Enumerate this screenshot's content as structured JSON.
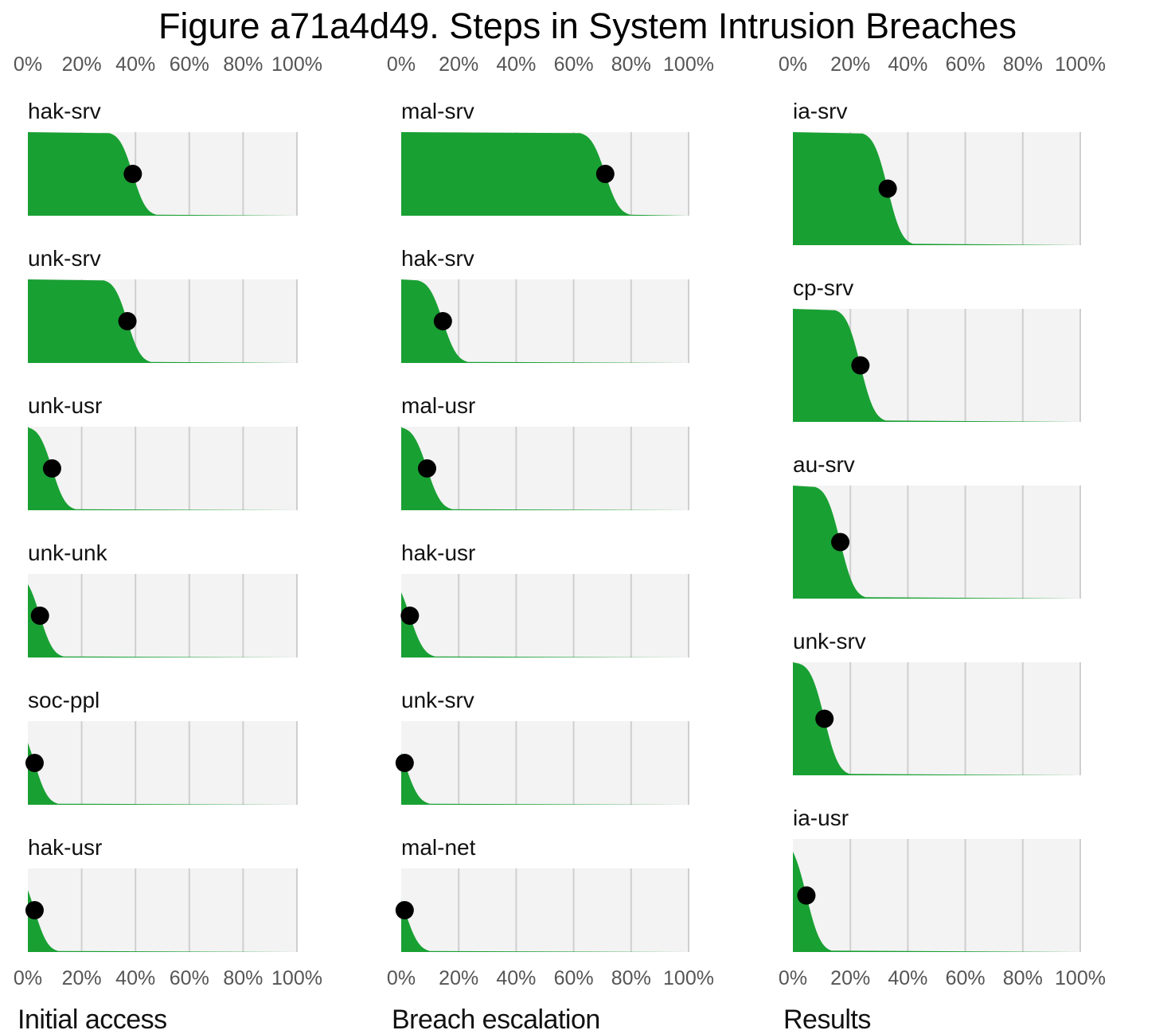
{
  "chart_data": {
    "type": "area",
    "title": "Figure a71a4d49. Steps in System Intrusion Breaches",
    "x_ticks": [
      "0%",
      "20%",
      "40%",
      "60%",
      "80%",
      "100%"
    ],
    "xlim": [
      0,
      1
    ],
    "grid": true,
    "fill_color": "#19a033",
    "point_color": "#000000",
    "panel_bg": "#f3f3f3",
    "columns": [
      {
        "name": "Initial access",
        "rows": [
          {
            "label": "hak-srv",
            "value": 0.39
          },
          {
            "label": "unk-srv",
            "value": 0.37
          },
          {
            "label": "unk-usr",
            "value": 0.09
          },
          {
            "label": "unk-unk",
            "value": 0.045
          },
          {
            "label": "soc-ppl",
            "value": 0.025
          },
          {
            "label": "hak-usr",
            "value": 0.025
          }
        ]
      },
      {
        "name": "Breach escalation",
        "rows": [
          {
            "label": "mal-srv",
            "value": 0.71
          },
          {
            "label": "hak-srv",
            "value": 0.145
          },
          {
            "label": "mal-usr",
            "value": 0.09
          },
          {
            "label": "hak-usr",
            "value": 0.03
          },
          {
            "label": "unk-srv",
            "value": 0.012
          },
          {
            "label": "mal-net",
            "value": 0.012
          }
        ]
      },
      {
        "name": "Results",
        "rows": [
          {
            "label": "ia-srv",
            "value": 0.33
          },
          {
            "label": "cp-srv",
            "value": 0.235
          },
          {
            "label": "au-srv",
            "value": 0.165
          },
          {
            "label": "unk-srv",
            "value": 0.11
          },
          {
            "label": "ia-usr",
            "value": 0.047
          }
        ]
      }
    ]
  }
}
